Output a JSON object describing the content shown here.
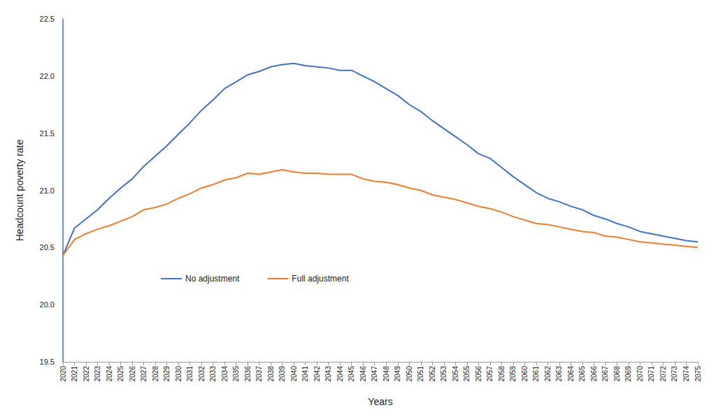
{
  "chart_data": {
    "type": "line",
    "x_label": "Years",
    "y_label": "Headcount poverty rate",
    "categories": [
      "2020",
      "2021",
      "2022",
      "2023",
      "2024",
      "2025",
      "2026",
      "2027",
      "2028",
      "2029",
      "2030",
      "2031",
      "2032",
      "2033",
      "2034",
      "2035",
      "2036",
      "2037",
      "2038",
      "2039",
      "2040",
      "2041",
      "2042",
      "2043",
      "2044",
      "2045",
      "2046",
      "2047",
      "2048",
      "2049",
      "2050",
      "2051",
      "2052",
      "2053",
      "2054",
      "2055",
      "2056",
      "2057",
      "2058",
      "2059",
      "2060",
      "2061",
      "2062",
      "2063",
      "2064",
      "2065",
      "2066",
      "2067",
      "2068",
      "2069",
      "2070",
      "2071",
      "2072",
      "2073",
      "2074",
      "2075"
    ],
    "series": [
      {
        "name": "No adjustment",
        "color": "#4472c4",
        "marker": "none",
        "line_style": "solid",
        "values": [
          20.43,
          20.67,
          20.75,
          20.83,
          20.93,
          21.02,
          21.1,
          21.21,
          21.3,
          21.39,
          21.49,
          21.59,
          21.7,
          21.79,
          21.89,
          21.95,
          22.01,
          22.04,
          22.08,
          22.1,
          22.11,
          22.09,
          22.08,
          22.07,
          22.05,
          22.05,
          22.0,
          21.95,
          21.89,
          21.83,
          21.75,
          21.69,
          21.61,
          21.54,
          21.47,
          21.4,
          21.32,
          21.28,
          21.2,
          21.12,
          21.05,
          20.98,
          20.93,
          20.9,
          20.86,
          20.83,
          20.78,
          20.75,
          20.71,
          20.68,
          20.64,
          20.62,
          20.6,
          20.58,
          20.56,
          20.55
        ]
      },
      {
        "name": "Full adjustment",
        "color": "#ed7d31",
        "marker": "none",
        "line_style": "solid",
        "values": [
          20.43,
          20.57,
          20.62,
          20.66,
          20.69,
          20.73,
          20.77,
          20.83,
          20.85,
          20.88,
          20.93,
          20.97,
          21.02,
          21.05,
          21.09,
          21.11,
          21.15,
          21.14,
          21.16,
          21.18,
          21.16,
          21.15,
          21.15,
          21.14,
          21.14,
          21.14,
          21.1,
          21.08,
          21.07,
          21.05,
          21.02,
          21.0,
          20.96,
          20.94,
          20.92,
          20.89,
          20.86,
          20.84,
          20.81,
          20.77,
          20.74,
          20.71,
          20.7,
          20.68,
          20.66,
          20.64,
          20.63,
          20.6,
          20.59,
          20.57,
          20.55,
          20.54,
          20.53,
          20.52,
          20.51,
          20.5
        ]
      }
    ],
    "ylim": [
      19.5,
      22.5
    ],
    "yticks": [
      19.5,
      {
        "value": 20,
        "label": "20.0"
      },
      20.5,
      {
        "value": 21,
        "label": "21.0"
      },
      21.5,
      {
        "value": 22,
        "label": "22.0"
      },
      22.5
    ],
    "grid": false,
    "legend": "lower left"
  }
}
